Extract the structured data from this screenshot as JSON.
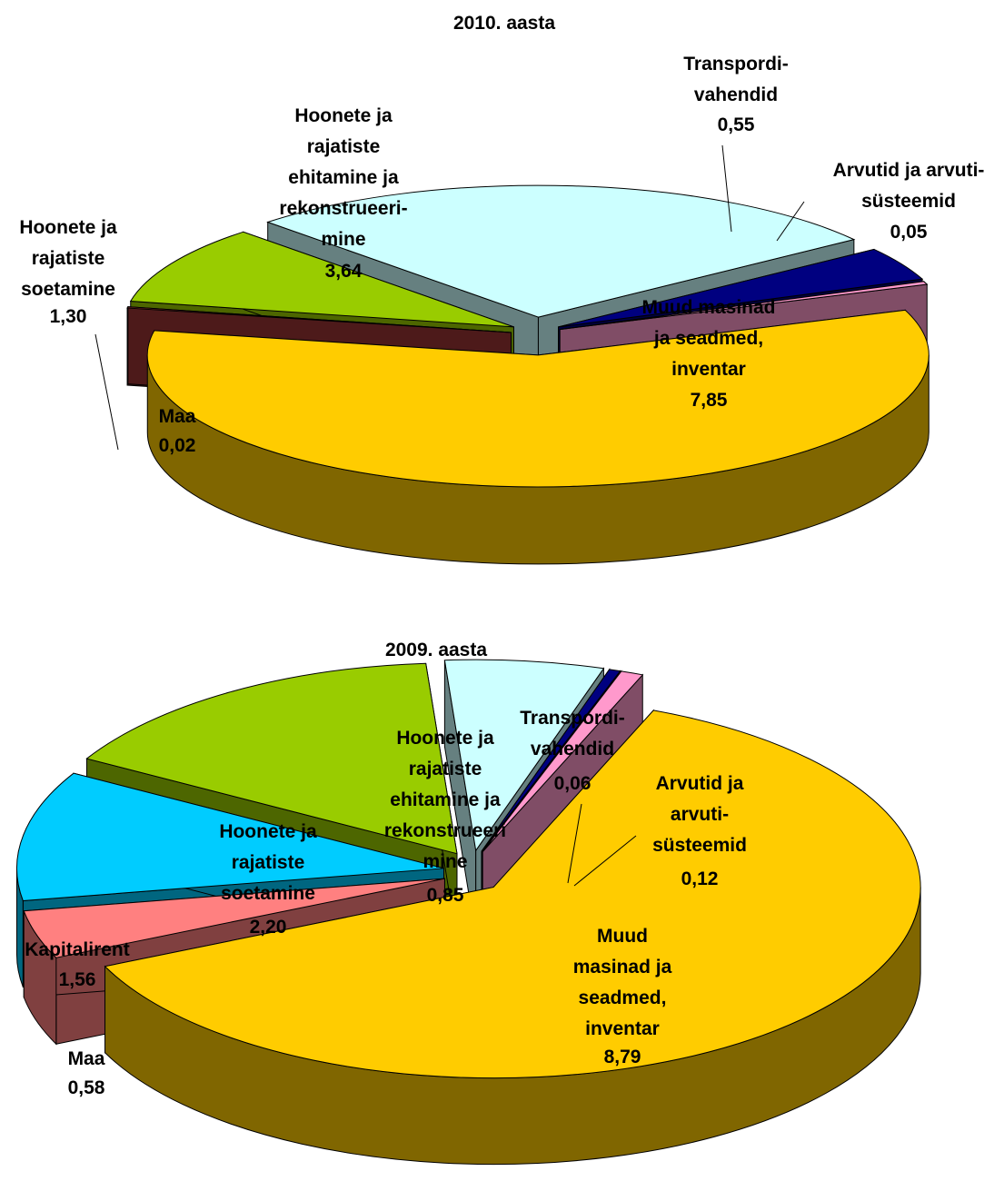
{
  "chart_data": [
    {
      "type": "pie",
      "title": "2010. aasta",
      "categories": [
        "Muud masinad\nja seadmed,\ninventar",
        "Maa",
        "Hoonete ja\nrajatiste\nsoetamine",
        "Hoonete ja\nrajatiste\nehitamine ja\nrekonstrueeri-\nmine",
        "Transpordi-\nvahendid",
        "Arvutid ja arvuti-\nsüsteemid"
      ],
      "values": [
        7.85,
        0.02,
        1.3,
        3.64,
        0.55,
        0.05
      ],
      "value_labels": [
        "7,85",
        "0,02",
        "1,30",
        "3,64",
        "0,55",
        "0,05"
      ],
      "colors": [
        "#ffcc00",
        "#993333",
        "#99cc00",
        "#ccffff",
        "#000080",
        "#ff99cc"
      ]
    },
    {
      "type": "pie",
      "title": "2009. aasta",
      "categories": [
        "Muud\nmasinad ja\nseadmed,\ninventar",
        "Maa",
        "Kapitalirent",
        "Hoonete ja\nrajatiste\nsoetamine",
        "Hoonete ja\nrajatiste\nehitamine ja\nrekonstrueeri\nmine",
        "Transpordi-\nvahendid",
        "Arvutid ja\narvuti-\nsüsteemid"
      ],
      "values": [
        8.79,
        0.58,
        1.56,
        2.2,
        0.85,
        0.06,
        0.12
      ],
      "value_labels": [
        "8,79",
        "0,58",
        "1,56",
        "2,20",
        "0,85",
        "0,06",
        "0,12"
      ],
      "colors": [
        "#ffcc00",
        "#ff8080",
        "#00ccff",
        "#99cc00",
        "#ccffff",
        "#000080",
        "#ff99cc"
      ]
    }
  ]
}
